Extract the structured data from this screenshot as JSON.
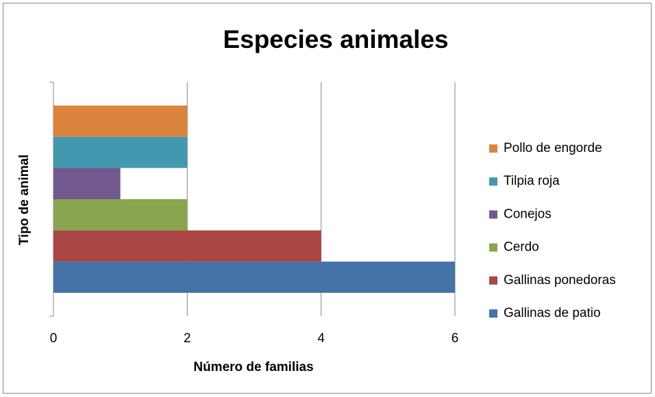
{
  "chart_data": {
    "type": "barh",
    "title": "Especies animales",
    "x_label": "Número de familias",
    "y_label": "Tipo de animal",
    "categories": [
      null
    ],
    "series": [
      {
        "name": "Gallinas de patio",
        "color": "#4572a7",
        "values": [
          6
        ]
      },
      {
        "name": "Gallinas ponedoras",
        "color": "#aa4643",
        "values": [
          4
        ]
      },
      {
        "name": "Cerdo",
        "color": "#89a54e",
        "values": [
          2
        ]
      },
      {
        "name": "Conejos",
        "color": "#71588f",
        "values": [
          1
        ]
      },
      {
        "name": "Tilpia roja",
        "color": "#4198af",
        "values": [
          2
        ]
      },
      {
        "name": "Pollo de engorde",
        "color": "#db843d",
        "values": [
          2
        ]
      }
    ],
    "xlim": [
      0,
      6
    ],
    "xticks": [
      0,
      2,
      4,
      6
    ],
    "grid": true,
    "legend": "right"
  }
}
